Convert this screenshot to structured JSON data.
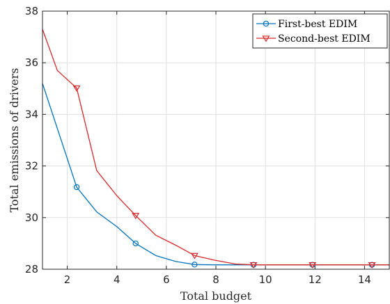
{
  "chart_data": {
    "type": "line",
    "xlabel": "Total budget",
    "ylabel": "Total emissions of drivers",
    "xlim": [
      1,
      15
    ],
    "ylim": [
      28,
      38
    ],
    "xticks": [
      2,
      4,
      6,
      8,
      10,
      12,
      14
    ],
    "yticks": [
      28,
      30,
      32,
      34,
      36,
      38
    ],
    "grid": true,
    "legend_position": "top-right",
    "series": [
      {
        "name": "First-best EDIM",
        "color": "#0072BD",
        "marker": "circle",
        "x": [
          1.0,
          2.38,
          3.19,
          4.0,
          4.76,
          5.57,
          6.38,
          7.14,
          7.95,
          9.52,
          11.9,
          14.3,
          15.0
        ],
        "y": [
          35.2,
          31.18,
          30.22,
          29.65,
          29.0,
          28.53,
          28.3,
          28.18,
          28.17,
          28.17,
          28.17,
          28.17,
          28.17
        ],
        "marker_indices": [
          1,
          4,
          7,
          9,
          10,
          11
        ]
      },
      {
        "name": "Second-best EDIM",
        "color": "#D62728",
        "marker": "triangle-down",
        "x": [
          1.0,
          1.6,
          2.38,
          3.19,
          4.0,
          4.76,
          5.57,
          6.38,
          7.14,
          7.95,
          8.8,
          9.52,
          11.9,
          14.3,
          15.0
        ],
        "y": [
          37.3,
          35.7,
          35.02,
          31.82,
          30.85,
          30.08,
          29.32,
          28.93,
          28.53,
          28.35,
          28.2,
          28.17,
          28.17,
          28.17,
          28.17
        ],
        "marker_indices": [
          2,
          5,
          8,
          11,
          12,
          13
        ]
      }
    ]
  }
}
